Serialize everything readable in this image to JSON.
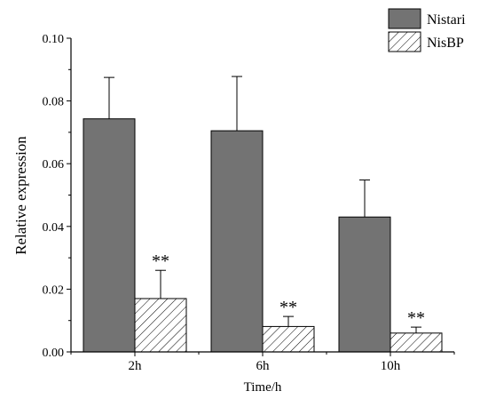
{
  "chart_data": {
    "type": "bar",
    "title": "",
    "xlabel": "Time/h",
    "ylabel": "Relative expression",
    "categories": [
      "2h",
      "6h",
      "10h"
    ],
    "ylim": [
      0,
      0.1
    ],
    "yticks": [
      "0.00",
      "0.02",
      "0.04",
      "0.06",
      "0.08",
      "0.10"
    ],
    "grid": false,
    "legend_position": "top-right",
    "series": [
      {
        "name": "Nistari",
        "values": [
          0.0743,
          0.0705,
          0.043
        ],
        "errors": [
          0.0132,
          0.0173,
          0.0118
        ],
        "color": "#737373",
        "pattern": "solid",
        "annotations": [
          "",
          "",
          ""
        ]
      },
      {
        "name": "NisBP",
        "values": [
          0.017,
          0.0081,
          0.006
        ],
        "errors": [
          0.009,
          0.0032,
          0.0019
        ],
        "color": "#ffffff",
        "pattern": "hatch",
        "annotations": [
          "**",
          "**",
          "**"
        ]
      }
    ]
  }
}
